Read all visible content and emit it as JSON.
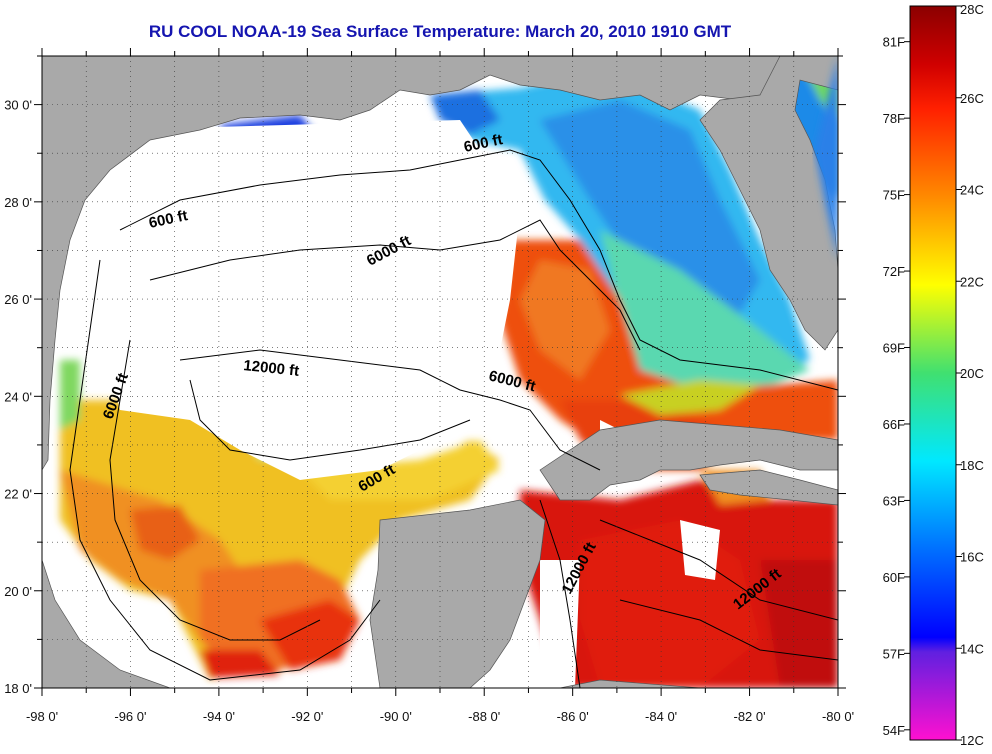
{
  "title": "RU COOL  NOAA-19  Sea Surface Temperature:  March 20, 2010 1910 GMT",
  "axes": {
    "lat_labels": [
      "30 0'",
      "28 0'",
      "26 0'",
      "24 0'",
      "22 0'",
      "20 0'",
      "18 0'"
    ],
    "lon_labels": [
      "-98 0'",
      "-96 0'",
      "-94 0'",
      "-92 0'",
      "-90 0'",
      "-88 0'",
      "-86 0'",
      "-84 0'",
      "-82 0'",
      "-80 0'"
    ],
    "lat_range": [
      18,
      31
    ],
    "lon_range": [
      -98,
      -80
    ],
    "grid": "dotted"
  },
  "contour_labels": [
    "600 ft",
    "600 ft",
    "6000 ft",
    "6000 ft",
    "12000 ft",
    "6000 ft",
    "600 ft",
    "12000 ft",
    "12000 ft"
  ],
  "colorbar": {
    "celsius": [
      "28C",
      "26C",
      "24C",
      "22C",
      "20C",
      "18C",
      "16C",
      "14C",
      "12C"
    ],
    "fahrenheit": [
      "81F",
      "78F",
      "75F",
      "72F",
      "69F",
      "66F",
      "63F",
      "60F",
      "57F",
      "54F"
    ],
    "range_c": [
      12,
      28
    ]
  },
  "colors": {
    "land": "#a9a9a9",
    "cloud": "#ffffff",
    "title": "#1515b0",
    "warm": "#cc1a10",
    "cool": "#3aa8ee"
  }
}
